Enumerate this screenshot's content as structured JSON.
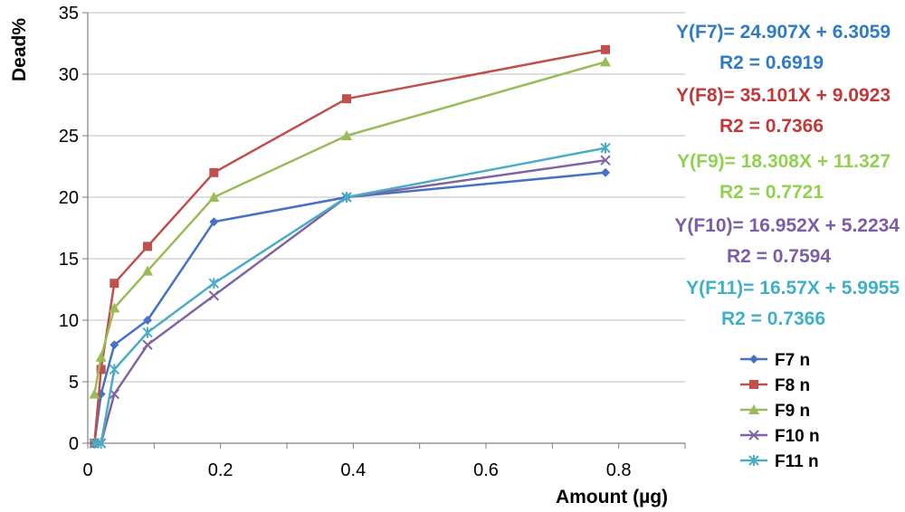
{
  "chart_data": {
    "type": "line",
    "xlabel": "Amount (µg)",
    "ylabel": "Dead%",
    "xlim": [
      0,
      0.9
    ],
    "ylim": [
      0,
      35
    ],
    "x_ticks": [
      "0",
      "0.2",
      "0.4",
      "0.6",
      "0.8"
    ],
    "y_ticks": [
      "0",
      "5",
      "10",
      "15",
      "20",
      "25",
      "30",
      "35"
    ],
    "grid": "horizontal",
    "legend_position": "bottom-right",
    "series": [
      {
        "name": "F7 n",
        "color": "#4472c4",
        "marker": "diamond",
        "points": [
          [
            0.01,
            0
          ],
          [
            0.02,
            4
          ],
          [
            0.04,
            8
          ],
          [
            0.09,
            10
          ],
          [
            0.19,
            18
          ],
          [
            0.39,
            20
          ],
          [
            0.78,
            22
          ]
        ]
      },
      {
        "name": "F8 n",
        "color": "#c0504d",
        "marker": "square",
        "points": [
          [
            0.01,
            0
          ],
          [
            0.02,
            6
          ],
          [
            0.04,
            13
          ],
          [
            0.09,
            16
          ],
          [
            0.19,
            22
          ],
          [
            0.39,
            28
          ],
          [
            0.78,
            32
          ]
        ]
      },
      {
        "name": "F9 n",
        "color": "#9bbb59",
        "marker": "triangle",
        "points": [
          [
            0.01,
            4
          ],
          [
            0.02,
            7
          ],
          [
            0.04,
            11
          ],
          [
            0.09,
            14
          ],
          [
            0.19,
            20
          ],
          [
            0.39,
            25
          ],
          [
            0.78,
            31
          ]
        ]
      },
      {
        "name": "F10 n",
        "color": "#8064a2",
        "marker": "x",
        "points": [
          [
            0.01,
            0
          ],
          [
            0.02,
            0
          ],
          [
            0.04,
            4
          ],
          [
            0.09,
            8
          ],
          [
            0.19,
            12
          ],
          [
            0.39,
            20
          ],
          [
            0.78,
            23
          ]
        ]
      },
      {
        "name": "F11 n",
        "color": "#4bacc6",
        "marker": "star",
        "points": [
          [
            0.01,
            0
          ],
          [
            0.02,
            0
          ],
          [
            0.04,
            6
          ],
          [
            0.09,
            9
          ],
          [
            0.19,
            13
          ],
          [
            0.39,
            20
          ],
          [
            0.78,
            24
          ]
        ]
      }
    ],
    "annotations": [
      {
        "equation": "Y(F7)= 24.907X + 6.3059",
        "r2": "R2 = 0.6919",
        "color": "#2f7bc4"
      },
      {
        "equation": "Y(F8)= 35.101X + 9.0923",
        "r2": "R2 = 0.7366",
        "color": "#c0393b"
      },
      {
        "equation": "Y(F9)= 18.308X + 11.327",
        "r2": "R2 = 0.7721",
        "color": "#92d050"
      },
      {
        "equation": "Y(F10)= 16.952X + 5.2234",
        "r2": "R2 = 0.7594",
        "color": "#7b5ea7"
      },
      {
        "equation": "Y(F11)= 16.57X + 5.9955",
        "r2": "R2 = 0.7366",
        "color": "#3fb0c8"
      }
    ]
  }
}
